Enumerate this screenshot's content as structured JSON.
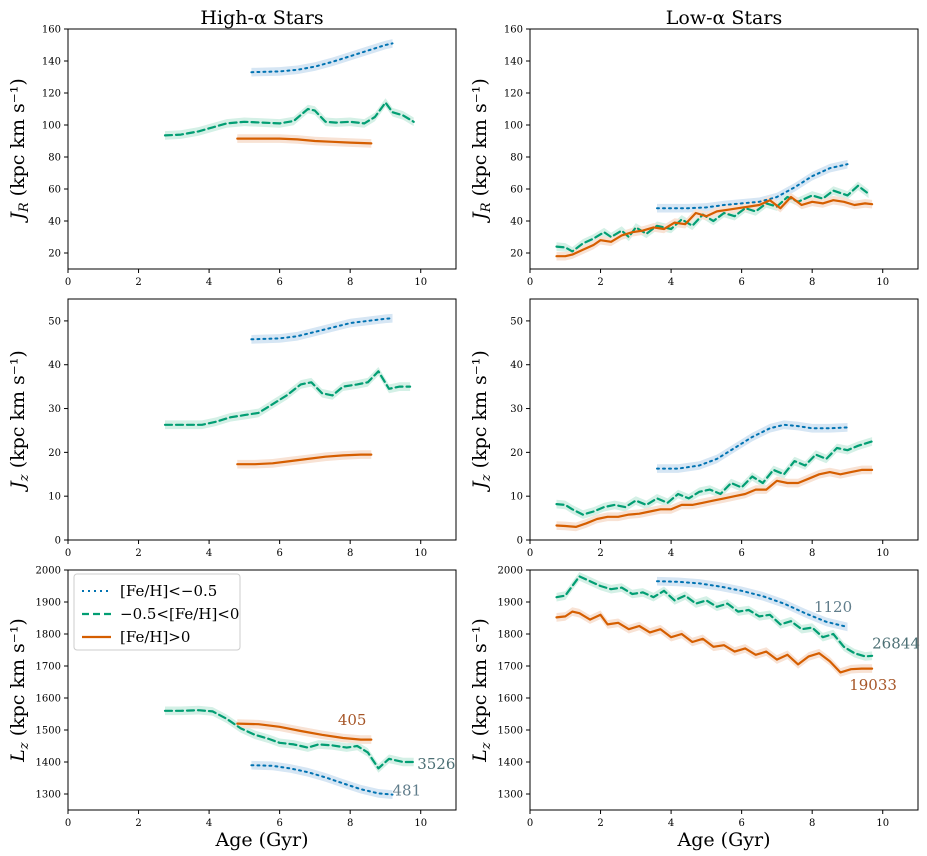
{
  "figure": {
    "col_titles": [
      "High-α Stars",
      "Low-α Stars"
    ],
    "xlabel": "Age (Gyr)"
  },
  "legend": [
    {
      "label": "[Fe/H]<−0.5",
      "series": 0
    },
    {
      "label": "−0.5<[Fe/H]<0",
      "series": 1
    },
    {
      "label": "[Fe/H]>0",
      "series": 2
    }
  ],
  "series_styles": [
    {
      "color": "#0173b2",
      "band": "#d6e6f4",
      "dash": "2,4",
      "width": 2
    },
    {
      "color": "#029e73",
      "band": "#d4f0e6",
      "dash": "7,4",
      "width": 2.2
    },
    {
      "color": "#d55e00",
      "band": "#f8e2d4",
      "dash": "",
      "width": 2.2
    }
  ],
  "chart_data": [
    {
      "type": "line",
      "panel": "high-alpha-jr",
      "title": "High-α Stars",
      "ylabel": "J_R (kpc km s⁻¹)",
      "xlim": [
        0,
        11
      ],
      "ylim": [
        10,
        160
      ],
      "xticks": [
        0,
        2,
        4,
        6,
        8,
        10
      ],
      "yticks": [
        20,
        40,
        60,
        80,
        100,
        120,
        140,
        160
      ],
      "series": [
        {
          "style": 0,
          "x": [
            5.2,
            6,
            6.5,
            7,
            7.5,
            8,
            8.5,
            9,
            9.2
          ],
          "y": [
            133,
            133.5,
            134.5,
            136.5,
            139.5,
            143,
            146.5,
            150,
            151
          ]
        },
        {
          "style": 1,
          "x": [
            2.75,
            3.2,
            3.7,
            4.1,
            4.5,
            5,
            5.5,
            6,
            6.4,
            6.8,
            7,
            7.3,
            7.6,
            8,
            8.4,
            8.7,
            9,
            9.2,
            9.5,
            9.8
          ],
          "y": [
            93.5,
            94,
            96,
            98.5,
            101,
            102,
            101.5,
            101,
            102.5,
            110,
            109,
            102,
            101.5,
            102,
            101,
            105,
            114,
            108,
            106,
            102
          ]
        },
        {
          "style": 2,
          "x": [
            4.8,
            5.5,
            6,
            6.5,
            7,
            7.5,
            8,
            8.6
          ],
          "y": [
            91.5,
            91.5,
            91.5,
            91,
            90,
            89.5,
            89,
            88.5
          ]
        }
      ],
      "annotations": []
    },
    {
      "type": "line",
      "panel": "low-alpha-jr",
      "title": "Low-α Stars",
      "ylabel": "J_R (kpc km s⁻¹)",
      "xlim": [
        0,
        11
      ],
      "ylim": [
        10,
        160
      ],
      "xticks": [
        0,
        2,
        4,
        6,
        8,
        10
      ],
      "yticks": [
        20,
        40,
        60,
        80,
        100,
        120,
        140,
        160
      ],
      "series": [
        {
          "style": 0,
          "x": [
            3.6,
            4,
            4.5,
            5,
            5.5,
            6,
            6.5,
            7,
            7.5,
            8,
            8.5,
            9
          ],
          "y": [
            48,
            48,
            48,
            48.5,
            50,
            51,
            52,
            55,
            61,
            68,
            73,
            75.5
          ]
        },
        {
          "style": 1,
          "x": [
            0.75,
            1,
            1.2,
            1.5,
            1.8,
            2.1,
            2.3,
            2.6,
            2.8,
            3,
            3.3,
            3.6,
            4,
            4.3,
            4.6,
            4.9,
            5.2,
            5.5,
            5.8,
            6.1,
            6.4,
            6.7,
            7,
            7.3,
            7.6,
            8,
            8.3,
            8.6,
            9,
            9.3,
            9.6
          ],
          "y": [
            24,
            23.5,
            21,
            26,
            29,
            33,
            30,
            34,
            30,
            36,
            32,
            37,
            35,
            41,
            37,
            44,
            40,
            45,
            43,
            48,
            46,
            51,
            49,
            55,
            52,
            56,
            54,
            59,
            56,
            62,
            57
          ]
        },
        {
          "style": 2,
          "x": [
            0.75,
            1,
            1.2,
            1.5,
            1.8,
            2,
            2.3,
            2.6,
            2.9,
            3.2,
            3.5,
            3.8,
            4.1,
            4.4,
            4.7,
            5,
            5.3,
            5.6,
            5.9,
            6.2,
            6.5,
            6.8,
            7.1,
            7.4,
            7.7,
            8,
            8.3,
            8.6,
            8.9,
            9.2,
            9.5,
            9.7
          ],
          "y": [
            18,
            18,
            19,
            22,
            25,
            28,
            27,
            31,
            33,
            34,
            36,
            35,
            39,
            38,
            45,
            43,
            46,
            47,
            48,
            49,
            50,
            53,
            48,
            55,
            50,
            52,
            51,
            53,
            52,
            50,
            51,
            50.5
          ]
        }
      ],
      "annotations": []
    },
    {
      "type": "line",
      "panel": "high-alpha-jz",
      "ylabel": "J_z (kpc km s⁻¹)",
      "xlim": [
        0,
        11
      ],
      "ylim": [
        0,
        55
      ],
      "xticks": [
        0,
        2,
        4,
        6,
        8,
        10
      ],
      "yticks": [
        0,
        10,
        20,
        30,
        40,
        50
      ],
      "series": [
        {
          "style": 0,
          "x": [
            5.2,
            6,
            6.5,
            7,
            7.5,
            8,
            8.5,
            9,
            9.2
          ],
          "y": [
            45.8,
            46,
            46.5,
            47.5,
            48.5,
            49.5,
            50,
            50.5,
            50.6
          ]
        },
        {
          "style": 1,
          "x": [
            2.75,
            3.3,
            3.8,
            4.2,
            4.6,
            5,
            5.4,
            5.8,
            6.2,
            6.6,
            6.9,
            7.2,
            7.5,
            7.8,
            8.2,
            8.5,
            8.8,
            9.1,
            9.4,
            9.7
          ],
          "y": [
            26.3,
            26.3,
            26.3,
            27,
            28,
            28.5,
            29,
            31,
            33,
            35.5,
            36,
            33.5,
            33,
            35,
            35.5,
            36,
            38.5,
            34.5,
            35,
            35
          ]
        },
        {
          "style": 2,
          "x": [
            4.8,
            5.3,
            5.8,
            6.3,
            6.8,
            7.3,
            7.8,
            8.3,
            8.6
          ],
          "y": [
            17.3,
            17.3,
            17.5,
            18,
            18.5,
            19,
            19.3,
            19.5,
            19.5
          ]
        }
      ],
      "annotations": []
    },
    {
      "type": "line",
      "panel": "low-alpha-jz",
      "ylabel": "J_z (kpc km s⁻¹)",
      "xlim": [
        0,
        11
      ],
      "ylim": [
        0,
        55
      ],
      "xticks": [
        0,
        2,
        4,
        6,
        8,
        10
      ],
      "yticks": [
        0,
        10,
        20,
        30,
        40,
        50
      ],
      "series": [
        {
          "style": 0,
          "x": [
            3.6,
            4.2,
            4.8,
            5.3,
            5.8,
            6.3,
            6.8,
            7.2,
            7.6,
            8,
            8.5,
            9
          ],
          "y": [
            16.3,
            16.3,
            17,
            18.5,
            21,
            23.5,
            25.5,
            26.3,
            26,
            25.5,
            25.5,
            25.7
          ]
        },
        {
          "style": 1,
          "x": [
            0.75,
            1,
            1.2,
            1.5,
            1.8,
            2.1,
            2.4,
            2.7,
            3,
            3.3,
            3.6,
            3.9,
            4.2,
            4.5,
            4.8,
            5.1,
            5.4,
            5.7,
            6,
            6.3,
            6.6,
            6.9,
            7.2,
            7.5,
            7.8,
            8.1,
            8.4,
            8.7,
            9,
            9.3,
            9.7
          ],
          "y": [
            8.2,
            8,
            7,
            5.8,
            6.5,
            7.5,
            8,
            7.5,
            9,
            8,
            9.5,
            8.5,
            10.5,
            9.5,
            11,
            11.5,
            10.5,
            13,
            12,
            14.5,
            13,
            16,
            15,
            18,
            17,
            19.5,
            18.5,
            21,
            20.5,
            21.5,
            22.5
          ]
        },
        {
          "style": 2,
          "x": [
            0.75,
            1,
            1.3,
            1.6,
            1.9,
            2.2,
            2.5,
            2.8,
            3.1,
            3.4,
            3.7,
            4,
            4.3,
            4.6,
            4.9,
            5.2,
            5.5,
            5.8,
            6.1,
            6.4,
            6.7,
            7,
            7.3,
            7.6,
            7.9,
            8.2,
            8.5,
            8.8,
            9.1,
            9.4,
            9.7
          ],
          "y": [
            3.3,
            3.2,
            3,
            3.8,
            4.8,
            5.3,
            5.3,
            5.8,
            6,
            6.5,
            7,
            7,
            8,
            8,
            8.5,
            9,
            9.5,
            10,
            10.5,
            11.5,
            11.5,
            13.5,
            13,
            13,
            14,
            15,
            15.5,
            15,
            15.5,
            16,
            16
          ]
        }
      ],
      "annotations": []
    },
    {
      "type": "line",
      "panel": "high-alpha-lz",
      "ylabel": "L_z (kpc km s⁻¹)",
      "xlabel": "Age (Gyr)",
      "xlim": [
        0,
        11
      ],
      "ylim": [
        1250,
        2000
      ],
      "xticks": [
        0,
        2,
        4,
        6,
        8,
        10
      ],
      "yticks": [
        1300,
        1400,
        1500,
        1600,
        1700,
        1800,
        1900,
        2000
      ],
      "series": [
        {
          "style": 0,
          "x": [
            5.2,
            5.8,
            6.3,
            6.8,
            7.3,
            7.8,
            8.3,
            8.8,
            9.2
          ],
          "y": [
            1390,
            1388,
            1380,
            1368,
            1352,
            1333,
            1315,
            1302,
            1298
          ]
        },
        {
          "style": 1,
          "x": [
            2.75,
            3.2,
            3.7,
            4.1,
            4.5,
            4.9,
            5.3,
            5.7,
            6,
            6.4,
            6.8,
            7.1,
            7.5,
            7.9,
            8.2,
            8.5,
            8.8,
            9.1,
            9.5,
            9.8
          ],
          "y": [
            1560,
            1560,
            1562,
            1558,
            1535,
            1505,
            1485,
            1472,
            1460,
            1455,
            1445,
            1455,
            1452,
            1445,
            1450,
            1430,
            1380,
            1410,
            1400,
            1400
          ]
        },
        {
          "style": 2,
          "x": [
            4.8,
            5.4,
            6,
            6.6,
            7.2,
            7.8,
            8.3,
            8.6
          ],
          "y": [
            1520,
            1518,
            1510,
            1497,
            1485,
            1475,
            1470,
            1470
          ]
        }
      ],
      "annotations": [
        {
          "text": "405",
          "x": 7.65,
          "y": 1515,
          "color": "#a65628"
        },
        {
          "text": "3526",
          "x": 9.9,
          "y": 1378,
          "color": "#4d7075"
        },
        {
          "text": "481",
          "x": 9.2,
          "y": 1295,
          "color": "#607d8b"
        }
      ]
    },
    {
      "type": "line",
      "panel": "low-alpha-lz",
      "ylabel": "L_z (kpc km s⁻¹)",
      "xlabel": "Age (Gyr)",
      "xlim": [
        0,
        11
      ],
      "ylim": [
        1250,
        2000
      ],
      "xticks": [
        0,
        2,
        4,
        6,
        8,
        10
      ],
      "yticks": [
        1300,
        1400,
        1500,
        1600,
        1700,
        1800,
        1900,
        2000
      ],
      "series": [
        {
          "style": 0,
          "x": [
            3.6,
            4.2,
            4.8,
            5.4,
            6,
            6.6,
            7.2,
            7.8,
            8.4,
            9
          ],
          "y": [
            1965,
            1963,
            1958,
            1948,
            1935,
            1918,
            1895,
            1865,
            1838,
            1822
          ]
        },
        {
          "style": 1,
          "x": [
            0.75,
            1,
            1.2,
            1.4,
            1.7,
            2,
            2.3,
            2.6,
            2.9,
            3.2,
            3.5,
            3.8,
            4.1,
            4.4,
            4.7,
            5,
            5.3,
            5.6,
            5.9,
            6.2,
            6.5,
            6.8,
            7.1,
            7.4,
            7.7,
            8,
            8.3,
            8.6,
            8.9,
            9.2,
            9.5,
            9.7
          ],
          "y": [
            1915,
            1920,
            1950,
            1980,
            1965,
            1950,
            1940,
            1945,
            1925,
            1930,
            1915,
            1935,
            1905,
            1920,
            1895,
            1905,
            1885,
            1895,
            1870,
            1875,
            1855,
            1860,
            1830,
            1840,
            1815,
            1820,
            1790,
            1800,
            1760,
            1740,
            1730,
            1732
          ]
        },
        {
          "style": 2,
          "x": [
            0.75,
            1,
            1.2,
            1.4,
            1.7,
            2,
            2.2,
            2.5,
            2.8,
            3.1,
            3.4,
            3.7,
            4,
            4.3,
            4.6,
            4.9,
            5.2,
            5.5,
            5.8,
            6.1,
            6.4,
            6.7,
            7,
            7.3,
            7.6,
            7.9,
            8.2,
            8.5,
            8.8,
            9.1,
            9.4,
            9.7
          ],
          "y": [
            1852,
            1855,
            1870,
            1865,
            1845,
            1860,
            1830,
            1835,
            1815,
            1825,
            1805,
            1815,
            1790,
            1800,
            1775,
            1785,
            1760,
            1765,
            1745,
            1755,
            1735,
            1745,
            1720,
            1735,
            1705,
            1730,
            1740,
            1715,
            1680,
            1690,
            1692,
            1692
          ]
        }
      ],
      "annotations": [
        {
          "text": "1120",
          "x": 8.05,
          "y": 1868,
          "color": "#607d8b"
        },
        {
          "text": "26844",
          "x": 9.7,
          "y": 1755,
          "color": "#4d7075"
        },
        {
          "text": "19033",
          "x": 9.05,
          "y": 1625,
          "color": "#a65628"
        }
      ]
    }
  ]
}
